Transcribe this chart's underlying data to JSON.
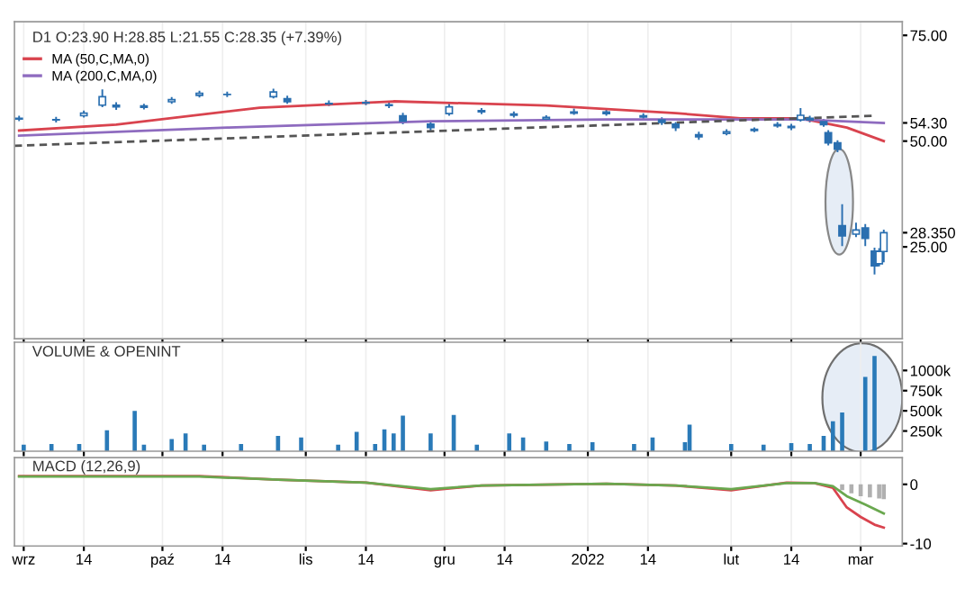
{
  "chart_data": [
    {
      "type": "candlestick",
      "title": "D1 O:23.90 H:28.85 L:21.55 C:28.35 (+7.39%)",
      "color": "#2a6fb0",
      "x": [
        "2021-08-31",
        "2021-09-08",
        "2021-09-14",
        "2021-09-18",
        "2021-09-21",
        "2021-09-27",
        "2021-10-03",
        "2021-10-09",
        "2021-10-15",
        "2021-10-25",
        "2021-10-28",
        "2021-11-06",
        "2021-11-14",
        "2021-11-19",
        "2021-11-22",
        "2021-11-28",
        "2021-12-02",
        "2021-12-09",
        "2021-12-16",
        "2021-12-23",
        "2021-12-29",
        "2022-01-05",
        "2022-01-13",
        "2022-01-17",
        "2022-01-20",
        "2022-01-25",
        "2022-01-31",
        "2022-02-06",
        "2022-02-11",
        "2022-02-14",
        "2022-02-16",
        "2022-02-18",
        "2022-02-21",
        "2022-02-22",
        "2022-02-24",
        "2022-02-25",
        "2022-02-28",
        "2022-03-02",
        "2022-03-04",
        "2022-03-05",
        "2022-03-06"
      ],
      "ohlc": [
        [
          55.2,
          55.8,
          54.9,
          55.4
        ],
        [
          55.0,
          55.5,
          54.6,
          55.1
        ],
        [
          56.0,
          57.0,
          55.8,
          56.6
        ],
        [
          58.5,
          62.0,
          58.2,
          60.5
        ],
        [
          58.5,
          59.0,
          57.6,
          58.1
        ],
        [
          58.0,
          58.6,
          57.7,
          58.3
        ],
        [
          59.3,
          60.2,
          59.0,
          59.8
        ],
        [
          60.8,
          61.7,
          60.5,
          61.3
        ],
        [
          61.0,
          61.5,
          60.6,
          61.0
        ],
        [
          60.5,
          62.2,
          60.3,
          61.6
        ],
        [
          60.0,
          60.5,
          59.0,
          59.3
        ],
        [
          58.9,
          59.4,
          58.5,
          58.8
        ],
        [
          59.0,
          59.5,
          58.7,
          59.1
        ],
        [
          58.6,
          59.0,
          58.0,
          58.4
        ],
        [
          56.0,
          56.5,
          54.2,
          54.7
        ],
        [
          54.0,
          54.5,
          52.6,
          53.2
        ],
        [
          56.5,
          58.6,
          56.2,
          58.1
        ],
        [
          57.2,
          57.6,
          56.6,
          56.9
        ],
        [
          56.4,
          56.8,
          55.8,
          56.1
        ],
        [
          55.2,
          55.9,
          55.0,
          55.6
        ],
        [
          56.6,
          57.5,
          56.4,
          56.9
        ],
        [
          56.9,
          57.2,
          56.2,
          56.5
        ],
        [
          56.0,
          56.4,
          55.3,
          55.7
        ],
        [
          55.0,
          55.4,
          54.0,
          54.4
        ],
        [
          54.0,
          54.3,
          52.6,
          53.2
        ],
        [
          51.5,
          52.0,
          50.5,
          51.0
        ],
        [
          51.8,
          52.6,
          51.6,
          52.2
        ],
        [
          52.5,
          53.0,
          52.3,
          52.8
        ],
        [
          53.6,
          54.3,
          53.4,
          53.9
        ],
        [
          53.5,
          53.9,
          52.8,
          53.2
        ],
        [
          55.0,
          57.6,
          54.8,
          56.1
        ],
        [
          55.4,
          55.8,
          54.6,
          55.0
        ],
        [
          54.6,
          55.0,
          53.6,
          53.9
        ],
        [
          52.0,
          52.4,
          49.2,
          49.6
        ],
        [
          49.6,
          50.0,
          47.6,
          48.1
        ],
        [
          30.0,
          34.9,
          25.4,
          27.6
        ],
        [
          28.0,
          30.5,
          27.5,
          29.0
        ],
        [
          29.5,
          30.2,
          25.4,
          27.0
        ],
        [
          24.0,
          24.6,
          18.7,
          20.5
        ],
        [
          21.0,
          24.5,
          20.6,
          23.9
        ],
        [
          23.9,
          28.85,
          21.55,
          28.35
        ]
      ],
      "series": [
        {
          "type": "line",
          "name": "MA (50,C,MA,0)",
          "color": "#d9434e",
          "x": [
            "2021-08-31",
            "2021-09-21",
            "2021-10-22",
            "2021-11-20",
            "2021-12-23",
            "2022-01-20",
            "2022-02-03",
            "2022-02-16",
            "2022-02-26",
            "2022-03-06"
          ],
          "values": [
            52.5,
            53.9,
            57.9,
            59.4,
            58.4,
            56.6,
            55.4,
            55.4,
            53.2,
            50.0
          ]
        },
        {
          "type": "line",
          "name": "MA (200,C,MA,0)",
          "color": "#8e6bbf",
          "x": [
            "2021-08-31",
            "2021-10-15",
            "2021-11-28",
            "2022-01-05",
            "2022-02-16",
            "2022-03-06"
          ],
          "values": [
            51.3,
            53.2,
            54.7,
            55.1,
            55.1,
            54.3
          ]
        },
        {
          "type": "line",
          "color": "#555555",
          "line_style": "dashed",
          "x": [
            "2021-08-30",
            "2022-03-04"
          ],
          "values": [
            48.9,
            56.0
          ]
        }
      ],
      "xlim": [
        "2021-08-30",
        "2022-03-10"
      ],
      "ylim": [
        3.3,
        78.2
      ],
      "yticks": [
        {
          "value": 75,
          "label": "75.00"
        },
        {
          "value": 54.3,
          "label": "54.30"
        },
        {
          "value": 50,
          "label": "50.00"
        },
        {
          "value": 28.35,
          "label": "28.350"
        },
        {
          "value": 25,
          "label": "25.00"
        }
      ],
      "xticks": [
        "2021-09-01",
        "2021-09-14",
        "2021-10-01",
        "2021-10-14",
        "2021-11-01",
        "2021-11-14",
        "2021-12-01",
        "2021-12-14",
        "2022-01-01",
        "2022-01-14",
        "2022-02-01",
        "2022-02-14",
        "2022-03-01"
      ],
      "tick_labels": "y",
      "grid": "x",
      "legend": "top left"
    },
    {
      "type": "bar",
      "title": "VOLUME & OPENINT",
      "color": "#2a7ab8",
      "x": [
        "2021-09-01",
        "2021-09-07",
        "2021-09-13",
        "2021-09-19",
        "2021-09-25",
        "2021-09-27",
        "2021-10-03",
        "2021-10-06",
        "2021-10-10",
        "2021-10-18",
        "2021-10-26",
        "2021-10-31",
        "2021-11-08",
        "2021-11-12",
        "2021-11-16",
        "2021-11-18",
        "2021-11-20",
        "2021-11-22",
        "2021-11-28",
        "2021-12-03",
        "2021-12-08",
        "2021-12-15",
        "2021-12-18",
        "2021-12-23",
        "2021-12-28",
        "2022-01-02",
        "2022-01-11",
        "2022-01-15",
        "2022-01-22",
        "2022-01-23",
        "2022-02-01",
        "2022-02-08",
        "2022-02-14",
        "2022-02-18",
        "2022-02-21",
        "2022-02-23",
        "2022-02-25",
        "2022-03-02",
        "2022-03-04"
      ],
      "values": [
        80000,
        90000,
        90000,
        260000,
        500000,
        80000,
        150000,
        220000,
        80000,
        90000,
        190000,
        170000,
        80000,
        240000,
        90000,
        270000,
        220000,
        440000,
        220000,
        450000,
        80000,
        220000,
        170000,
        120000,
        90000,
        110000,
        90000,
        170000,
        110000,
        330000,
        90000,
        80000,
        100000,
        90000,
        190000,
        370000,
        480000,
        920000,
        1180000
      ],
      "xlim": [
        "2021-08-30",
        "2022-03-10"
      ],
      "ylim": [
        0,
        1350000
      ],
      "yticks": [
        {
          "value": 250000,
          "label": "250k"
        },
        {
          "value": 500000,
          "label": "500k"
        },
        {
          "value": 750000,
          "label": "750k"
        },
        {
          "value": 1000000,
          "label": "1000k"
        }
      ],
      "xticks": [
        "2021-09-01",
        "2021-09-14",
        "2021-10-01",
        "2021-10-14",
        "2021-11-01",
        "2021-11-14",
        "2021-12-01",
        "2021-12-14",
        "2022-01-01",
        "2022-01-14",
        "2022-02-01",
        "2022-02-14",
        "2022-03-01"
      ],
      "tick_labels": "y",
      "grid": "x"
    },
    {
      "type": "line",
      "title": "MACD (12,26,9)",
      "series": [
        {
          "type": "bar",
          "color": "#b0b0b0",
          "x": [
            "2022-02-25",
            "2022-02-27",
            "2022-03-01",
            "2022-03-03",
            "2022-03-05",
            "2022-03-06"
          ],
          "values": [
            -1.0,
            -1.5,
            -2.0,
            -2.2,
            -2.4,
            -2.5
          ]
        },
        {
          "type": "line",
          "color": "#d9434e",
          "x": [
            "2021-08-31",
            "2021-10-09",
            "2021-10-26",
            "2021-11-14",
            "2021-11-28",
            "2021-12-09",
            "2022-01-05",
            "2022-01-20",
            "2022-02-01",
            "2022-02-13",
            "2022-02-19",
            "2022-02-23",
            "2022-02-26",
            "2022-03-01",
            "2022-03-04",
            "2022-03-06"
          ],
          "values": [
            1.4,
            1.4,
            0.8,
            0.3,
            -1.0,
            -0.2,
            0.1,
            -0.2,
            -1.0,
            0.3,
            0.2,
            -0.6,
            -3.9,
            -5.5,
            -6.8,
            -7.3
          ]
        },
        {
          "type": "line",
          "color": "#6aa84f",
          "x": [
            "2021-08-31",
            "2021-10-09",
            "2021-10-26",
            "2021-11-14",
            "2021-11-28",
            "2021-12-09",
            "2022-01-05",
            "2022-01-20",
            "2022-02-01",
            "2022-02-13",
            "2022-02-19",
            "2022-02-23",
            "2022-02-26",
            "2022-03-02",
            "2022-03-06"
          ],
          "values": [
            1.3,
            1.3,
            0.8,
            0.3,
            -0.8,
            -0.2,
            0.1,
            -0.2,
            -0.8,
            0.2,
            0.2,
            -0.3,
            -2.0,
            -3.4,
            -4.9
          ]
        }
      ],
      "xlim": [
        "2021-08-30",
        "2022-03-10"
      ],
      "ylim": [
        -10.4,
        4.5
      ],
      "yticks": [
        0,
        {
          "value": -10,
          "label": "-10"
        }
      ],
      "xticks": [
        {
          "value": "2021-09-01",
          "label": "wrz"
        },
        {
          "value": "2021-09-14",
          "label": "14"
        },
        {
          "value": "2021-10-01",
          "label": "paź"
        },
        {
          "value": "2021-10-14",
          "label": "14"
        },
        {
          "value": "2021-11-01",
          "label": "lis"
        },
        {
          "value": "2021-11-14",
          "label": "14"
        },
        {
          "value": "2021-12-01",
          "label": "gru"
        },
        {
          "value": "2021-12-14",
          "label": "14"
        },
        {
          "value": "2022-01-01",
          "label": "2022"
        },
        {
          "value": "2022-01-14",
          "label": "14"
        },
        {
          "value": "2022-02-01",
          "label": "lut"
        },
        {
          "value": "2022-02-14",
          "label": "14"
        },
        {
          "value": "2022-03-01",
          "label": "mar"
        }
      ],
      "grid": "x"
    }
  ]
}
